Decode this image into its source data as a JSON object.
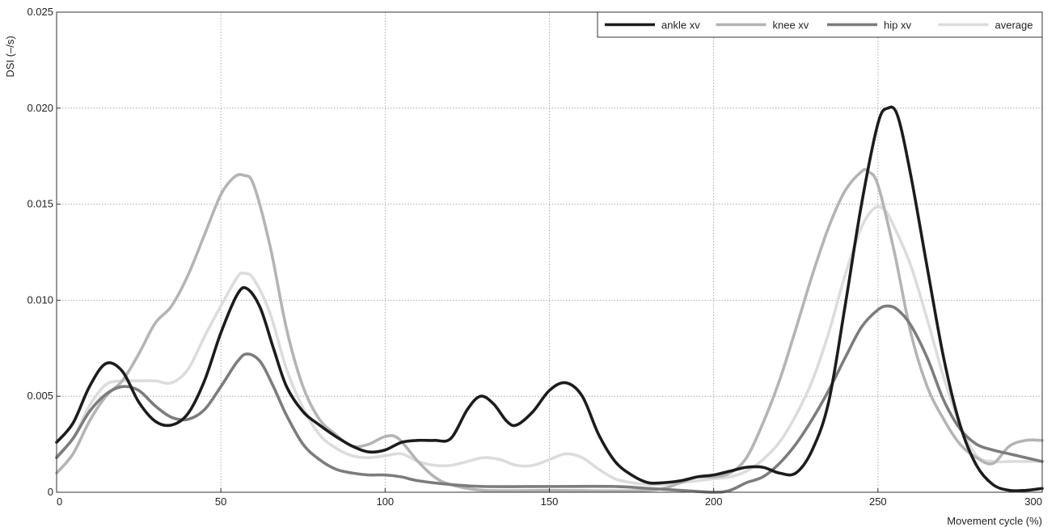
{
  "chart_data": {
    "type": "line",
    "title": "",
    "xlabel": "Movement cycle (%)",
    "ylabel": "DSI (–/s)",
    "xlim": [
      0,
      300
    ],
    "ylim": [
      0,
      0.025
    ],
    "xticks": [
      0,
      50,
      100,
      150,
      200,
      250,
      300
    ],
    "xtick_labels": [
      "0",
      "50",
      "100",
      "150",
      "200",
      "250",
      "300"
    ],
    "yticks": [
      0,
      0.005,
      0.01,
      0.015,
      0.02,
      0.025
    ],
    "ytick_labels": [
      "0",
      "0.005",
      "0.010",
      "0.015",
      "0.020",
      "0.025"
    ],
    "grid": true,
    "legend_position": "top-right",
    "series": [
      {
        "name": "ankle xv",
        "color": "#1c1c1c",
        "points": [
          [
            0,
            0.0026
          ],
          [
            5,
            0.0036
          ],
          [
            10,
            0.0055
          ],
          [
            15,
            0.0067
          ],
          [
            20,
            0.0063
          ],
          [
            25,
            0.0047
          ],
          [
            30,
            0.0037
          ],
          [
            35,
            0.0035
          ],
          [
            40,
            0.0041
          ],
          [
            45,
            0.0058
          ],
          [
            50,
            0.0083
          ],
          [
            55,
            0.0103
          ],
          [
            58,
            0.0106
          ],
          [
            62,
            0.0096
          ],
          [
            66,
            0.0075
          ],
          [
            70,
            0.0055
          ],
          [
            75,
            0.0042
          ],
          [
            80,
            0.0035
          ],
          [
            85,
            0.0029
          ],
          [
            90,
            0.0024
          ],
          [
            95,
            0.0021
          ],
          [
            100,
            0.0022
          ],
          [
            105,
            0.0026
          ],
          [
            110,
            0.0027
          ],
          [
            115,
            0.0027
          ],
          [
            120,
            0.0028
          ],
          [
            125,
            0.0043
          ],
          [
            129,
            0.005
          ],
          [
            133,
            0.0046
          ],
          [
            137,
            0.0037
          ],
          [
            140,
            0.0035
          ],
          [
            145,
            0.0042
          ],
          [
            150,
            0.0053
          ],
          [
            155,
            0.0057
          ],
          [
            160,
            0.005
          ],
          [
            165,
            0.003
          ],
          [
            170,
            0.0016
          ],
          [
            175,
            0.0009
          ],
          [
            180,
            0.0005
          ],
          [
            185,
            0.0005
          ],
          [
            190,
            0.0006
          ],
          [
            195,
            0.0008
          ],
          [
            200,
            0.0009
          ],
          [
            205,
            0.0011
          ],
          [
            210,
            0.0013
          ],
          [
            215,
            0.0013
          ],
          [
            220,
            0.001
          ],
          [
            225,
            0.001
          ],
          [
            230,
            0.0022
          ],
          [
            235,
            0.0047
          ],
          [
            240,
            0.0097
          ],
          [
            245,
            0.015
          ],
          [
            250,
            0.0192
          ],
          [
            253,
            0.02
          ],
          [
            256,
            0.0196
          ],
          [
            260,
            0.0165
          ],
          [
            265,
            0.0117
          ],
          [
            270,
            0.007
          ],
          [
            275,
            0.0035
          ],
          [
            280,
            0.0014
          ],
          [
            285,
            0.0004
          ],
          [
            290,
            0.0001
          ],
          [
            295,
            0.0001
          ],
          [
            300,
            0.0002
          ]
        ]
      },
      {
        "name": "knee xv",
        "color": "#b4b4b4",
        "points": [
          [
            0,
            0.001
          ],
          [
            5,
            0.002
          ],
          [
            10,
            0.0037
          ],
          [
            15,
            0.005
          ],
          [
            20,
            0.0058
          ],
          [
            25,
            0.0072
          ],
          [
            30,
            0.0088
          ],
          [
            35,
            0.0097
          ],
          [
            40,
            0.0113
          ],
          [
            45,
            0.0134
          ],
          [
            50,
            0.0155
          ],
          [
            54,
            0.0164
          ],
          [
            57,
            0.0165
          ],
          [
            60,
            0.016
          ],
          [
            65,
            0.0128
          ],
          [
            70,
            0.0085
          ],
          [
            75,
            0.0055
          ],
          [
            80,
            0.0038
          ],
          [
            85,
            0.003
          ],
          [
            90,
            0.0024
          ],
          [
            95,
            0.0025
          ],
          [
            100,
            0.0029
          ],
          [
            104,
            0.0028
          ],
          [
            110,
            0.0016
          ],
          [
            115,
            0.0008
          ],
          [
            120,
            0.0004
          ],
          [
            130,
            0.0001
          ],
          [
            150,
            0.0001
          ],
          [
            180,
            0.0001
          ],
          [
            190,
            0.0005
          ],
          [
            195,
            0.0008
          ],
          [
            200,
            0.0008
          ],
          [
            205,
            0.001
          ],
          [
            210,
            0.0018
          ],
          [
            215,
            0.0036
          ],
          [
            220,
            0.0058
          ],
          [
            225,
            0.0085
          ],
          [
            230,
            0.0113
          ],
          [
            235,
            0.0138
          ],
          [
            240,
            0.0157
          ],
          [
            245,
            0.0167
          ],
          [
            247,
            0.0167
          ],
          [
            250,
            0.016
          ],
          [
            255,
            0.0125
          ],
          [
            260,
            0.0083
          ],
          [
            265,
            0.0055
          ],
          [
            270,
            0.0038
          ],
          [
            275,
            0.0025
          ],
          [
            280,
            0.0018
          ],
          [
            285,
            0.0015
          ],
          [
            290,
            0.0024
          ],
          [
            295,
            0.0027
          ],
          [
            300,
            0.0027
          ]
        ]
      },
      {
        "name": "hip xv",
        "color": "#7c7c7c",
        "points": [
          [
            0,
            0.0018
          ],
          [
            5,
            0.0028
          ],
          [
            10,
            0.0042
          ],
          [
            15,
            0.0051
          ],
          [
            20,
            0.0055
          ],
          [
            25,
            0.0053
          ],
          [
            30,
            0.0045
          ],
          [
            35,
            0.0039
          ],
          [
            40,
            0.0038
          ],
          [
            45,
            0.0043
          ],
          [
            50,
            0.0055
          ],
          [
            55,
            0.0068
          ],
          [
            58,
            0.0072
          ],
          [
            62,
            0.0068
          ],
          [
            66,
            0.0055
          ],
          [
            70,
            0.004
          ],
          [
            75,
            0.0025
          ],
          [
            80,
            0.0017
          ],
          [
            85,
            0.0012
          ],
          [
            90,
            0.001
          ],
          [
            95,
            0.0009
          ],
          [
            100,
            0.0009
          ],
          [
            105,
            0.0008
          ],
          [
            110,
            0.0006
          ],
          [
            120,
            0.0004
          ],
          [
            130,
            0.0003
          ],
          [
            150,
            0.0003
          ],
          [
            170,
            0.0003
          ],
          [
            180,
            0.0002
          ],
          [
            190,
            0.0001
          ],
          [
            200,
            0.0
          ],
          [
            205,
            0.0001
          ],
          [
            210,
            0.0005
          ],
          [
            215,
            0.0008
          ],
          [
            220,
            0.0015
          ],
          [
            225,
            0.0025
          ],
          [
            230,
            0.0038
          ],
          [
            235,
            0.0053
          ],
          [
            240,
            0.007
          ],
          [
            245,
            0.0086
          ],
          [
            250,
            0.0095
          ],
          [
            253,
            0.0097
          ],
          [
            256,
            0.0095
          ],
          [
            260,
            0.0087
          ],
          [
            265,
            0.007
          ],
          [
            270,
            0.0048
          ],
          [
            275,
            0.0033
          ],
          [
            280,
            0.0025
          ],
          [
            285,
            0.0022
          ],
          [
            290,
            0.002
          ],
          [
            295,
            0.0018
          ],
          [
            300,
            0.0016
          ]
        ]
      },
      {
        "name": "average",
        "color": "#dcdcdc",
        "points": [
          [
            0,
            0.0019
          ],
          [
            5,
            0.0028
          ],
          [
            10,
            0.0045
          ],
          [
            15,
            0.0056
          ],
          [
            20,
            0.0058
          ],
          [
            25,
            0.0058
          ],
          [
            30,
            0.0058
          ],
          [
            35,
            0.0057
          ],
          [
            40,
            0.0064
          ],
          [
            45,
            0.0081
          ],
          [
            50,
            0.0097
          ],
          [
            55,
            0.0112
          ],
          [
            57,
            0.0114
          ],
          [
            60,
            0.0111
          ],
          [
            65,
            0.0093
          ],
          [
            70,
            0.0064
          ],
          [
            75,
            0.0044
          ],
          [
            80,
            0.003
          ],
          [
            85,
            0.0023
          ],
          [
            90,
            0.0019
          ],
          [
            95,
            0.0018
          ],
          [
            100,
            0.0019
          ],
          [
            105,
            0.002
          ],
          [
            110,
            0.0016
          ],
          [
            115,
            0.0014
          ],
          [
            120,
            0.0014
          ],
          [
            125,
            0.0016
          ],
          [
            130,
            0.0018
          ],
          [
            135,
            0.0017
          ],
          [
            140,
            0.0014
          ],
          [
            145,
            0.0014
          ],
          [
            150,
            0.0017
          ],
          [
            155,
            0.002
          ],
          [
            160,
            0.0018
          ],
          [
            165,
            0.0012
          ],
          [
            170,
            0.0007
          ],
          [
            175,
            0.0005
          ],
          [
            180,
            0.0004
          ],
          [
            185,
            0.0004
          ],
          [
            190,
            0.0005
          ],
          [
            195,
            0.0006
          ],
          [
            200,
            0.0007
          ],
          [
            205,
            0.0008
          ],
          [
            210,
            0.0011
          ],
          [
            215,
            0.0017
          ],
          [
            220,
            0.0026
          ],
          [
            225,
            0.004
          ],
          [
            230,
            0.0058
          ],
          [
            235,
            0.0083
          ],
          [
            240,
            0.0113
          ],
          [
            245,
            0.0138
          ],
          [
            249,
            0.0148
          ],
          [
            252,
            0.0147
          ],
          [
            255,
            0.0138
          ],
          [
            260,
            0.0118
          ],
          [
            265,
            0.009
          ],
          [
            270,
            0.006
          ],
          [
            275,
            0.0035
          ],
          [
            280,
            0.0019
          ],
          [
            285,
            0.0016
          ],
          [
            290,
            0.0016
          ],
          [
            295,
            0.0016
          ],
          [
            300,
            0.0016
          ]
        ]
      }
    ]
  }
}
